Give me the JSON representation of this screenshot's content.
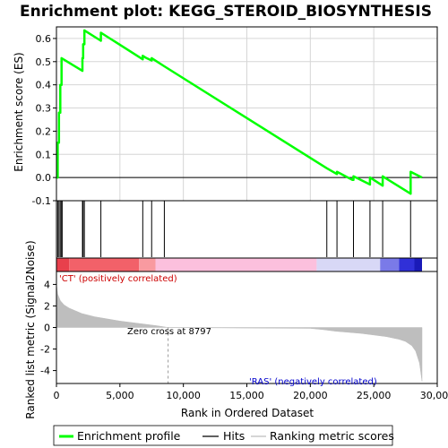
{
  "chart_data": {
    "type": "line",
    "title": "Enrichment plot: KEGG_STEROID_BIOSYNTHESIS",
    "xlabel": "Rank in Ordered Dataset",
    "xlim": [
      0,
      30000
    ],
    "x_ticks": [
      0,
      5000,
      10000,
      15000,
      20000,
      25000,
      30000
    ],
    "x_tick_labels": [
      "0",
      "5,000",
      "10,000",
      "15,000",
      "20,000",
      "25,000",
      "30,000"
    ],
    "es_panel": {
      "ylabel": "Enrichment score (ES)",
      "ylim": [
        -0.1,
        0.65
      ],
      "y_ticks": [
        -0.1,
        0.0,
        0.1,
        0.2,
        0.3,
        0.4,
        0.5,
        0.6
      ],
      "y_tick_labels": [
        "-0.1",
        "0.0",
        "0.1",
        "0.2",
        "0.3",
        "0.4",
        "0.5",
        "0.6"
      ],
      "grid": true,
      "series": [
        {
          "name": "Enrichment profile",
          "color": "#00ff00",
          "x": [
            0,
            100,
            100,
            200,
            200,
            300,
            300,
            400,
            400,
            2050,
            2050,
            2100,
            2100,
            2200,
            2200,
            3500,
            3500,
            6800,
            6800,
            7100,
            7500,
            7500,
            8500,
            21300,
            22100,
            22100,
            23300,
            23400,
            23400,
            24700,
            24700,
            25700,
            25700,
            27900,
            27900,
            28800
          ],
          "y": [
            0.0,
            0.0,
            0.15,
            0.15,
            0.28,
            0.28,
            0.4,
            0.4,
            0.515,
            0.46,
            0.515,
            0.515,
            0.575,
            0.575,
            0.635,
            0.59,
            0.625,
            0.51,
            0.525,
            0.515,
            0.505,
            0.515,
            0.48,
            0.04,
            0.015,
            0.025,
            -0.01,
            -0.01,
            0.005,
            -0.03,
            0.0,
            -0.035,
            0.005,
            -0.07,
            0.025,
            0.0
          ]
        }
      ]
    },
    "hits_panel": {
      "series_name": "Hits",
      "hit_ranks": [
        100,
        200,
        300,
        400,
        450,
        2050,
        2100,
        2200,
        3500,
        6800,
        7500,
        8500,
        21300,
        22100,
        23400,
        24700,
        25700,
        27900
      ]
    },
    "rank_gradient": {
      "segments": [
        {
          "from": 0,
          "to": 1000,
          "color": "#e8404c"
        },
        {
          "from": 1000,
          "to": 6500,
          "color": "#f26169"
        },
        {
          "from": 6500,
          "to": 7800,
          "color": "#f99aa0"
        },
        {
          "from": 7800,
          "to": 20500,
          "color": "#fcc0dd"
        },
        {
          "from": 20500,
          "to": 25500,
          "color": "#d8d8f6"
        },
        {
          "from": 25500,
          "to": 27000,
          "color": "#7a7ae8"
        },
        {
          "from": 27000,
          "to": 28200,
          "color": "#3030d8"
        },
        {
          "from": 28200,
          "to": 28800,
          "color": "#1a1ab8"
        }
      ]
    },
    "metric_panel": {
      "ylabel": "Ranked list metric (Signal2Noise)",
      "ylim": [
        -5.2,
        5.2
      ],
      "y_ticks": [
        -4,
        -2,
        0,
        2,
        4
      ],
      "y_tick_labels": [
        "-4",
        "-2",
        "0",
        "2",
        "4"
      ],
      "series": [
        {
          "name": "Ranking metric scores",
          "color": "#bebebe",
          "x": [
            0,
            100,
            300,
            600,
            1000,
            2000,
            3000,
            4000,
            5000,
            6000,
            7000,
            8000,
            8797,
            10000,
            15000,
            20000,
            21000,
            22000,
            23000,
            24000,
            25000,
            26000,
            27000,
            27500,
            28000,
            28300,
            28600,
            28800
          ],
          "y": [
            4.0,
            3.1,
            2.5,
            2.1,
            1.8,
            1.3,
            1.0,
            0.8,
            0.6,
            0.45,
            0.3,
            0.15,
            0.0,
            -0.02,
            -0.05,
            -0.08,
            -0.2,
            -0.35,
            -0.45,
            -0.55,
            -0.7,
            -0.85,
            -1.1,
            -1.3,
            -1.7,
            -2.2,
            -3.3,
            -5.0
          ]
        }
      ],
      "zero_cross_rank": 8797,
      "annotations": {
        "positive": "'CT' (positively correlated)",
        "zero_cross": "Zero cross at 8797",
        "negative": "'RAS' (negatively correlated)"
      }
    },
    "legend": {
      "placement": "bottom",
      "entries": [
        "Enrichment profile",
        "Hits",
        "Ranking metric scores"
      ]
    }
  }
}
